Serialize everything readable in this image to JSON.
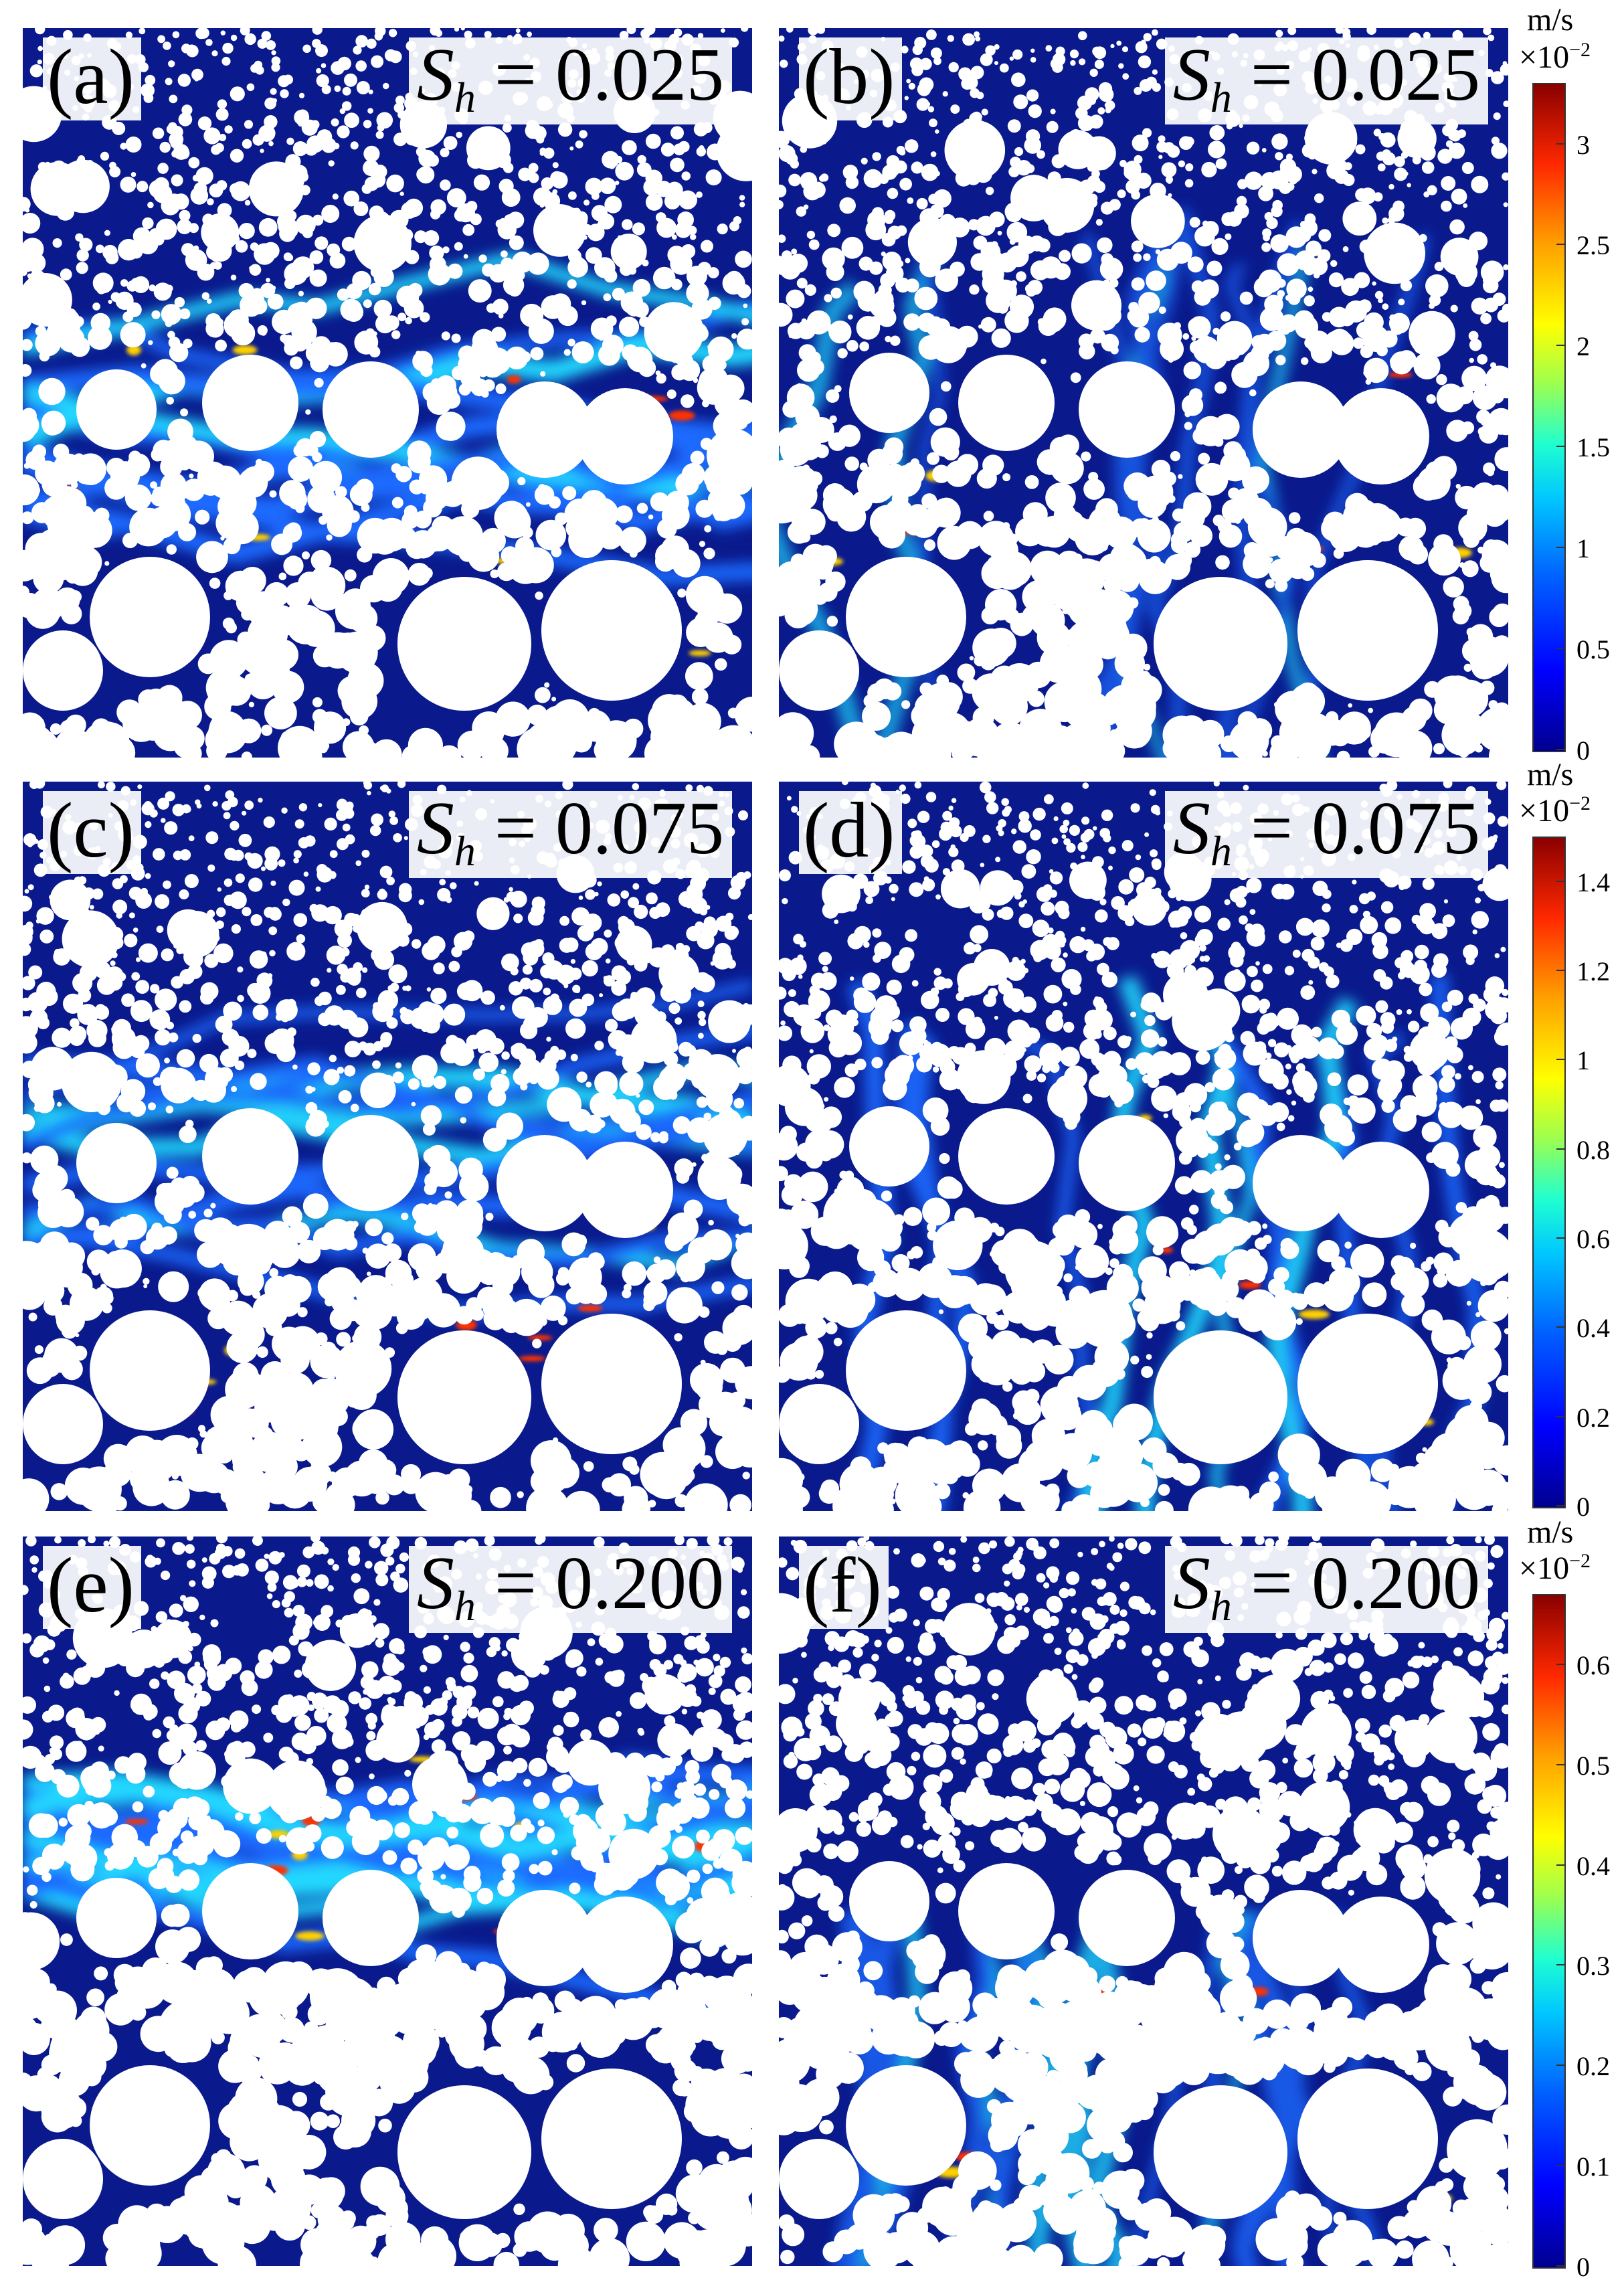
{
  "panels": [
    {
      "id": "a",
      "label": "(a)",
      "sh_symbol": "S",
      "sh_sub": "h",
      "sh_value": "= 0.025",
      "variant": "left",
      "intensity": 1.0
    },
    {
      "id": "b",
      "label": "(b)",
      "sh_symbol": "S",
      "sh_sub": "h",
      "sh_value": "= 0.025",
      "variant": "right",
      "intensity": 0.35
    },
    {
      "id": "c",
      "label": "(c)",
      "sh_symbol": "S",
      "sh_sub": "h",
      "sh_value": "= 0.075",
      "variant": "left",
      "intensity": 0.9
    },
    {
      "id": "d",
      "label": "(d)",
      "sh_symbol": "S",
      "sh_sub": "h",
      "sh_value": "= 0.075",
      "variant": "right",
      "intensity": 0.8
    },
    {
      "id": "e",
      "label": "(e)",
      "sh_symbol": "S",
      "sh_sub": "h",
      "sh_value": "= 0.200",
      "variant": "left-dense",
      "intensity": 1.0
    },
    {
      "id": "f",
      "label": "(f)",
      "sh_symbol": "S",
      "sh_sub": "h",
      "sh_value": "= 0.200",
      "variant": "right-dense",
      "intensity": 0.5
    }
  ],
  "colorbars": [
    {
      "unit": "m/s",
      "multiplier": "×10",
      "exponent": "−2",
      "max": 3.3,
      "ticks": [
        "0",
        "0.5",
        "1",
        "1.5",
        "2",
        "2.5",
        "3"
      ],
      "tick_values": [
        0,
        0.5,
        1,
        1.5,
        2,
        2.5,
        3
      ]
    },
    {
      "unit": "m/s",
      "multiplier": "×10",
      "exponent": "−2",
      "max": 1.5,
      "ticks": [
        "0",
        "0.2",
        "0.4",
        "0.6",
        "0.8",
        "1",
        "1.2",
        "1.4"
      ],
      "tick_values": [
        0,
        0.2,
        0.4,
        0.6,
        0.8,
        1,
        1.2,
        1.4
      ]
    },
    {
      "unit": "m/s",
      "multiplier": "×10",
      "exponent": "−2",
      "max": 0.67,
      "ticks": [
        "0",
        "0.1",
        "0.2",
        "0.3",
        "0.4",
        "0.5",
        "0.6"
      ],
      "tick_values": [
        0,
        0.1,
        0.2,
        0.3,
        0.4,
        0.5,
        0.6
      ]
    }
  ],
  "colors": {
    "field_low": "#0a1a8c",
    "field_mid": "#1f6bff",
    "field_high": "#20d8ff",
    "hotspot": "#ff3000",
    "grain": "#ffffff"
  }
}
